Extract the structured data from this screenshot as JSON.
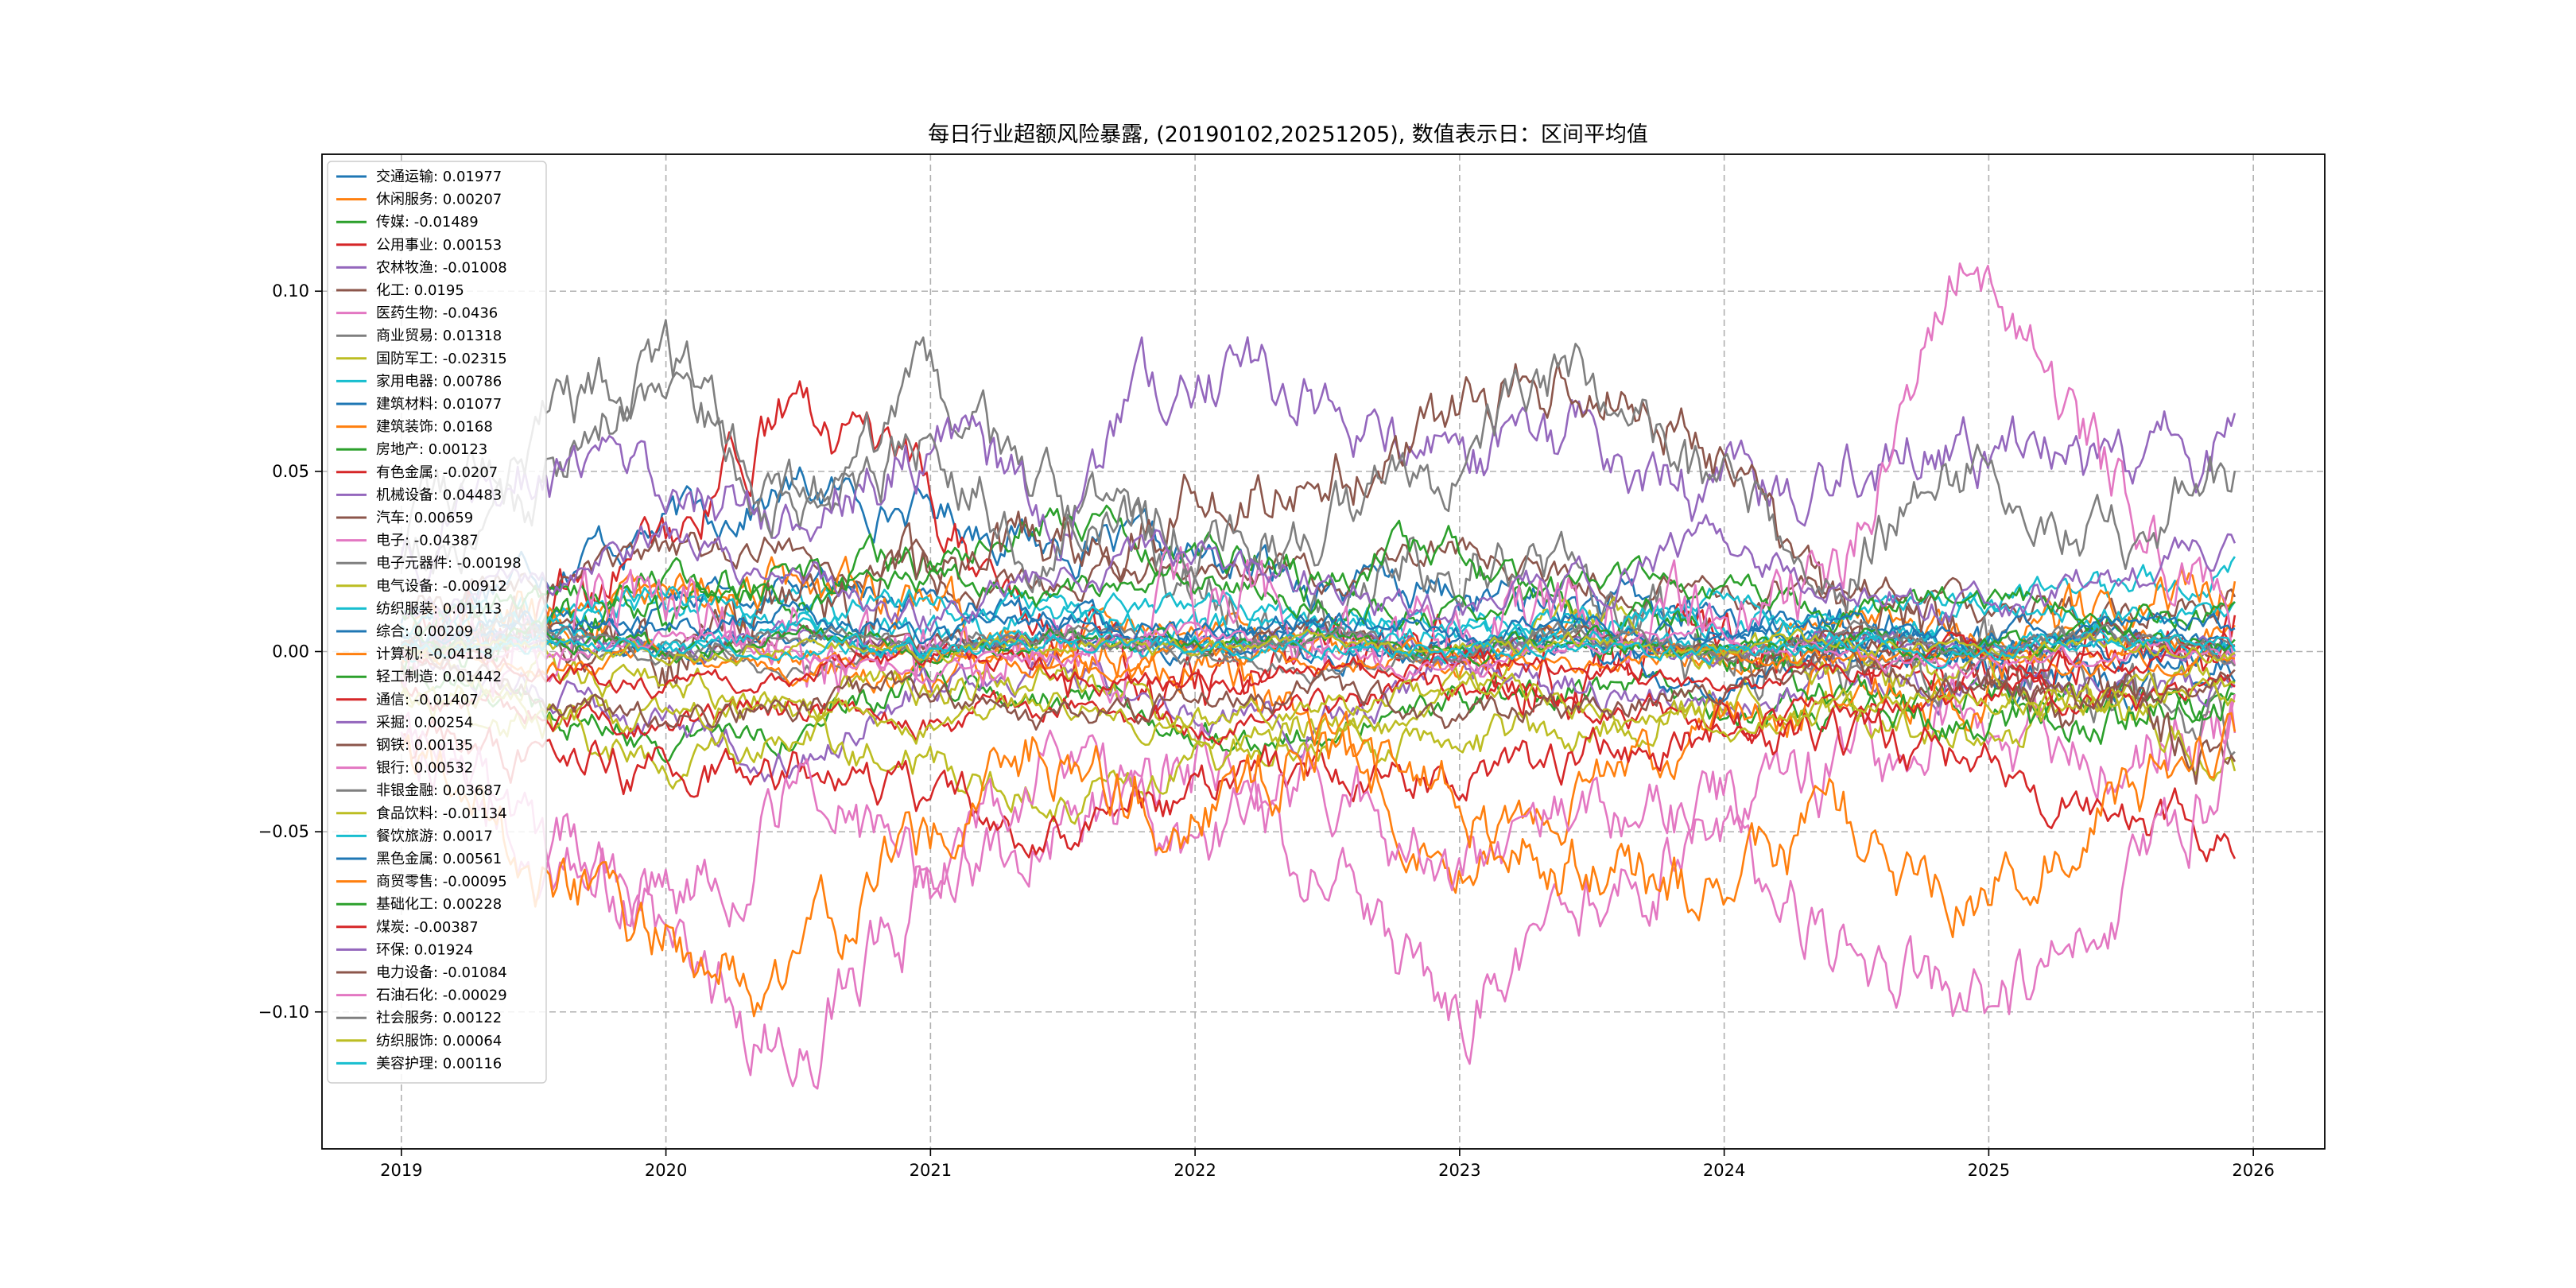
{
  "chart_data": {
    "type": "line",
    "title": "每日行业超额风险暴露, (20190102,20251205),  数值表示日：区间平均值",
    "xlabel": "",
    "ylabel": "",
    "x_range": [
      2018.7,
      2026.27
    ],
    "x_ticks": [
      2019,
      2020,
      2021,
      2022,
      2023,
      2024,
      2025,
      2026
    ],
    "x_tick_labels": [
      "2019",
      "2020",
      "2021",
      "2022",
      "2023",
      "2024",
      "2025",
      "2026"
    ],
    "x_start": 2019.0,
    "x_end": 2025.93,
    "ylim": [
      -0.138,
      0.138
    ],
    "y_ticks": [
      -0.1,
      -0.05,
      0.0,
      0.05,
      0.1
    ],
    "y_tick_labels": [
      "−0.10",
      "−0.05",
      "0.00",
      "0.05",
      "0.10"
    ],
    "grid": true,
    "legend_position": "upper-left",
    "series": [
      {
        "name": "交通运输",
        "mean": "0.01977",
        "color": "#1f77b4",
        "knots": [
          0.01,
          0.025,
          0.035,
          0.045,
          0.04,
          0.03,
          0.025,
          0.02,
          0.015,
          0.012,
          0.01,
          0.005,
          0.0,
          -0.01,
          0.0
        ]
      },
      {
        "name": "休闲服务",
        "mean": "0.00207",
        "color": "#ff7f0e",
        "knots": [
          0.0,
          0.01,
          0.02,
          0.0,
          -0.01,
          0.005,
          0.01,
          0.0,
          -0.005,
          0.005,
          0.0,
          0.01,
          0.005,
          0.0,
          0.005
        ]
      },
      {
        "name": "传媒",
        "mean": "-0.01489",
        "color": "#2ca02c",
        "knots": [
          -0.005,
          -0.015,
          -0.025,
          -0.02,
          -0.01,
          -0.015,
          -0.02,
          -0.025,
          -0.015,
          -0.01,
          -0.015,
          -0.02,
          -0.01,
          -0.015,
          -0.01
        ]
      },
      {
        "name": "公用事业",
        "mean": "0.00153",
        "color": "#d62728",
        "knots": [
          0.0,
          0.01,
          0.03,
          0.07,
          0.04,
          0.0,
          -0.01,
          0.0,
          0.01,
          -0.01,
          0.0,
          0.005,
          -0.005,
          0.0,
          0.005
        ]
      },
      {
        "name": "农林牧渔",
        "mean": "-0.01008",
        "color": "#9467bd",
        "knots": [
          0.0,
          -0.01,
          -0.02,
          -0.03,
          -0.01,
          0.0,
          -0.015,
          -0.02,
          -0.005,
          -0.01,
          -0.015,
          -0.005,
          -0.01,
          -0.008,
          -0.01
        ]
      },
      {
        "name": "化工",
        "mean": "0.0195",
        "color": "#8c564b",
        "knots": [
          0.01,
          0.02,
          0.025,
          0.03,
          0.02,
          0.015,
          0.025,
          0.02,
          0.03,
          0.02,
          0.015,
          0.02,
          0.015,
          0.01,
          0.015
        ]
      },
      {
        "name": "医药生物",
        "mean": "-0.0436",
        "color": "#e377c2",
        "knots": [
          -0.02,
          -0.05,
          -0.08,
          -0.11,
          -0.07,
          -0.05,
          -0.03,
          -0.06,
          -0.1,
          -0.07,
          -0.05,
          -0.03,
          -0.02,
          -0.03,
          -0.02
        ]
      },
      {
        "name": "商业贸易",
        "mean": "0.01318",
        "color": "#7f7f7f",
        "knots": [
          0.02,
          0.04,
          0.08,
          0.03,
          0.07,
          0.04,
          0.02,
          0.01,
          0.03,
          0.02,
          0.0,
          0.0,
          0.0,
          -0.01,
          -0.02
        ]
      },
      {
        "name": "国防军工",
        "mean": "-0.02315",
        "color": "#bcbd22",
        "knots": [
          -0.01,
          -0.02,
          -0.03,
          -0.025,
          -0.03,
          -0.04,
          -0.03,
          -0.02,
          -0.03,
          -0.02,
          -0.015,
          -0.02,
          -0.025,
          -0.015,
          -0.03
        ]
      },
      {
        "name": "家用电器",
        "mean": "0.00786",
        "color": "#17becf",
        "knots": [
          0.005,
          0.01,
          0.015,
          0.01,
          0.005,
          0.01,
          0.005,
          0.01,
          0.005,
          0.008,
          0.01,
          0.005,
          0.01,
          0.015,
          0.025
        ]
      },
      {
        "name": "建筑材料",
        "mean": "0.01077",
        "color": "#1f77b4",
        "knots": [
          0.0,
          0.005,
          0.01,
          0.02,
          0.015,
          0.01,
          0.005,
          0.0,
          0.0,
          0.0,
          -0.01,
          0.0,
          0.0,
          0.0,
          0.0
        ]
      },
      {
        "name": "建筑装饰",
        "mean": "0.0168",
        "color": "#ff7f0e",
        "knots": [
          0.0,
          0.01,
          0.01,
          0.02,
          0.01,
          0.0,
          0.0,
          -0.02,
          -0.06,
          -0.04,
          -0.02,
          -0.01,
          -0.01,
          0.01,
          0.02
        ]
      },
      {
        "name": "房地产",
        "mean": "0.00123",
        "color": "#2ca02c",
        "knots": [
          0.0,
          0.005,
          0.01,
          0.02,
          0.025,
          0.04,
          0.03,
          0.02,
          0.03,
          0.01,
          0.0,
          -0.01,
          -0.02,
          -0.02,
          -0.01
        ]
      },
      {
        "name": "有色金属",
        "mean": "-0.0207",
        "color": "#d62728",
        "knots": [
          -0.02,
          -0.03,
          -0.035,
          -0.03,
          -0.04,
          -0.05,
          -0.04,
          -0.03,
          -0.035,
          -0.03,
          -0.02,
          -0.025,
          -0.03,
          -0.045,
          -0.05
        ]
      },
      {
        "name": "机械设备",
        "mean": "0.04483",
        "color": "#9467bd",
        "knots": [
          0.03,
          0.05,
          0.05,
          0.04,
          0.06,
          0.04,
          0.08,
          0.07,
          0.05,
          0.06,
          0.04,
          0.05,
          0.06,
          0.05,
          0.06
        ]
      },
      {
        "name": "汽车",
        "mean": "0.00659",
        "color": "#8c564b",
        "knots": [
          0.0,
          0.01,
          0.0,
          0.01,
          0.02,
          0.03,
          0.04,
          0.05,
          0.06,
          0.08,
          0.06,
          0.01,
          0.0,
          -0.01,
          -0.03
        ]
      },
      {
        "name": "电子",
        "mean": "-0.04387",
        "color": "#e377c2",
        "knots": [
          -0.02,
          -0.05,
          -0.07,
          -0.04,
          -0.06,
          -0.03,
          -0.06,
          -0.04,
          -0.06,
          -0.04,
          -0.05,
          -0.08,
          -0.1,
          -0.08,
          -0.03
        ]
      },
      {
        "name": "电子元器件",
        "mean": "-0.00198",
        "color": "#7f7f7f",
        "knots": [
          0.0,
          0.005,
          0.0,
          -0.005,
          0.0,
          0.005,
          0.0,
          -0.005,
          0.0,
          0.005,
          0.0,
          -0.005,
          0.0,
          0.005,
          0.0
        ]
      },
      {
        "name": "电气设备",
        "mean": "-0.00912",
        "color": "#bcbd22",
        "knots": [
          0.0,
          -0.005,
          -0.01,
          -0.015,
          -0.01,
          -0.005,
          -0.02,
          -0.03,
          -0.01,
          0.01,
          0.0,
          -0.005,
          -0.01,
          -0.015,
          -0.01
        ]
      },
      {
        "name": "纺织服装",
        "mean": "0.01113",
        "color": "#17becf",
        "knots": [
          0.005,
          0.01,
          0.015,
          0.01,
          0.015,
          0.01,
          0.015,
          0.01,
          0.005,
          0.01,
          0.015,
          0.01,
          0.015,
          0.01,
          0.01
        ]
      },
      {
        "name": "综合",
        "mean": "0.00209",
        "color": "#1f77b4",
        "knots": [
          0.0,
          0.005,
          0.0,
          0.005,
          0.0,
          0.005,
          0.0,
          0.005,
          0.0,
          0.005,
          0.0,
          0.005,
          0.0,
          0.005,
          0.0
        ]
      },
      {
        "name": "计算机",
        "mean": "-0.04118",
        "color": "#ff7f0e",
        "knots": [
          -0.03,
          -0.06,
          -0.08,
          -0.09,
          -0.05,
          -0.03,
          -0.04,
          -0.03,
          -0.04,
          -0.06,
          -0.07,
          -0.05,
          -0.07,
          -0.04,
          -0.02
        ]
      },
      {
        "name": "轻工制造",
        "mean": "0.01442",
        "color": "#2ca02c",
        "knots": [
          0.01,
          0.015,
          0.02,
          0.015,
          0.02,
          0.015,
          0.02,
          0.015,
          0.01,
          0.02,
          0.015,
          0.01,
          0.015,
          0.01,
          0.01
        ]
      },
      {
        "name": "通信",
        "mean": "-0.01407",
        "color": "#d62728",
        "knots": [
          -0.01,
          -0.015,
          -0.02,
          -0.015,
          -0.02,
          -0.015,
          -0.02,
          -0.015,
          -0.01,
          -0.015,
          -0.02,
          -0.015,
          -0.01,
          -0.015,
          -0.01
        ]
      },
      {
        "name": "采掘",
        "mean": "0.00254",
        "color": "#9467bd",
        "knots": [
          0.0,
          0.005,
          0.0,
          0.005,
          0.0,
          0.005,
          0.0,
          0.005,
          0.0,
          0.005,
          0.0,
          0.005,
          0.0,
          0.005,
          0.0
        ]
      },
      {
        "name": "钢铁",
        "mean": "0.00135",
        "color": "#8c564b",
        "knots": [
          0.0,
          0.005,
          0.0,
          0.005,
          0.0,
          0.005,
          0.0,
          0.005,
          0.0,
          0.005,
          0.0,
          0.005,
          0.0,
          0.005,
          0.0
        ]
      },
      {
        "name": "银行",
        "mean": "0.00532",
        "color": "#e377c2",
        "knots": [
          0.0,
          0.005,
          0.01,
          0.005,
          0.0,
          0.005,
          0.01,
          0.005,
          0.0,
          0.005,
          0.01,
          0.02,
          0.11,
          0.05,
          0.0
        ]
      },
      {
        "name": "非银金融",
        "mean": "0.03687",
        "color": "#7f7f7f",
        "knots": [
          0.03,
          0.06,
          0.08,
          0.04,
          0.06,
          0.03,
          0.04,
          0.03,
          0.05,
          0.08,
          0.04,
          0.03,
          0.05,
          0.03,
          0.05
        ]
      },
      {
        "name": "食品饮料",
        "mean": "-0.01134",
        "color": "#bcbd22",
        "knots": [
          -0.01,
          -0.015,
          -0.02,
          -0.015,
          -0.02,
          -0.015,
          -0.02,
          -0.015,
          -0.01,
          -0.015,
          -0.02,
          -0.015,
          -0.01,
          -0.015,
          -0.01
        ]
      },
      {
        "name": "餐饮旅游",
        "mean": "0.0017",
        "color": "#17becf",
        "knots": [
          0.0,
          0.005,
          0.0,
          0.005,
          0.0,
          0.005,
          0.0,
          0.005,
          0.0,
          0.005,
          0.0,
          0.005,
          0.0,
          0.005,
          0.0
        ]
      },
      {
        "name": "黑色金属",
        "mean": "0.00561",
        "color": "#1f77b4",
        "knots": [
          0.005,
          0.01,
          0.005,
          0.01,
          0.005,
          0.01,
          0.005,
          0.01,
          0.005,
          0.01,
          0.005,
          0.01,
          0.005,
          0.01,
          0.005
        ]
      },
      {
        "name": "商贸零售",
        "mean": "-0.00095",
        "color": "#ff7f0e",
        "knots": [
          0.0,
          -0.005,
          0.0,
          -0.005,
          0.0,
          -0.005,
          0.0,
          -0.005,
          0.0,
          -0.005,
          0.0,
          -0.005,
          0.0,
          -0.005,
          0.0
        ]
      },
      {
        "name": "基础化工",
        "mean": "0.00228",
        "color": "#2ca02c",
        "knots": [
          0.0,
          0.005,
          0.0,
          0.005,
          0.0,
          0.005,
          0.0,
          0.005,
          0.0,
          0.005,
          0.0,
          0.005,
          0.0,
          0.005,
          0.0
        ]
      },
      {
        "name": "煤炭",
        "mean": "-0.00387",
        "color": "#d62728",
        "knots": [
          0.0,
          -0.005,
          -0.01,
          -0.005,
          0.0,
          -0.005,
          -0.01,
          -0.005,
          0.0,
          -0.005,
          -0.01,
          -0.005,
          0.0,
          -0.005,
          0.0
        ]
      },
      {
        "name": "环保",
        "mean": "0.01924",
        "color": "#9467bd",
        "knots": [
          0.01,
          0.02,
          0.03,
          0.02,
          0.01,
          0.02,
          0.03,
          0.02,
          0.01,
          0.02,
          0.03,
          0.02,
          0.01,
          0.02,
          0.03
        ]
      },
      {
        "name": "电力设备",
        "mean": "-0.01084",
        "color": "#8c564b",
        "knots": [
          0.0,
          -0.01,
          -0.02,
          -0.015,
          -0.01,
          -0.02,
          -0.015,
          -0.01,
          -0.02,
          -0.015,
          -0.01,
          -0.005,
          -0.01,
          -0.015,
          -0.01
        ]
      },
      {
        "name": "石油石化",
        "mean": "-0.00029",
        "color": "#e377c2",
        "knots": [
          0.0,
          0.0,
          0.005,
          0.0,
          -0.005,
          0.0,
          0.005,
          0.0,
          -0.005,
          0.0,
          0.005,
          0.0,
          -0.005,
          0.0,
          0.0
        ]
      },
      {
        "name": "社会服务",
        "mean": "0.00122",
        "color": "#7f7f7f",
        "knots": [
          0.0,
          0.005,
          0.0,
          0.005,
          0.0,
          0.005,
          0.0,
          0.005,
          0.0,
          0.005,
          0.0,
          0.005,
          0.0,
          0.005,
          0.0
        ]
      },
      {
        "name": "纺织服饰",
        "mean": "0.00064",
        "color": "#bcbd22",
        "knots": [
          0.0,
          0.002,
          0.0,
          0.002,
          0.0,
          0.002,
          0.0,
          0.002,
          0.0,
          0.002,
          0.0,
          0.002,
          0.0,
          0.002,
          0.0
        ]
      },
      {
        "name": "美容护理",
        "mean": "0.00116",
        "color": "#17becf",
        "knots": [
          0.0,
          0.002,
          0.0,
          0.002,
          0.0,
          0.002,
          0.0,
          0.002,
          0.0,
          0.002,
          0.0,
          0.002,
          0.0,
          0.002,
          0.002
        ]
      }
    ]
  }
}
